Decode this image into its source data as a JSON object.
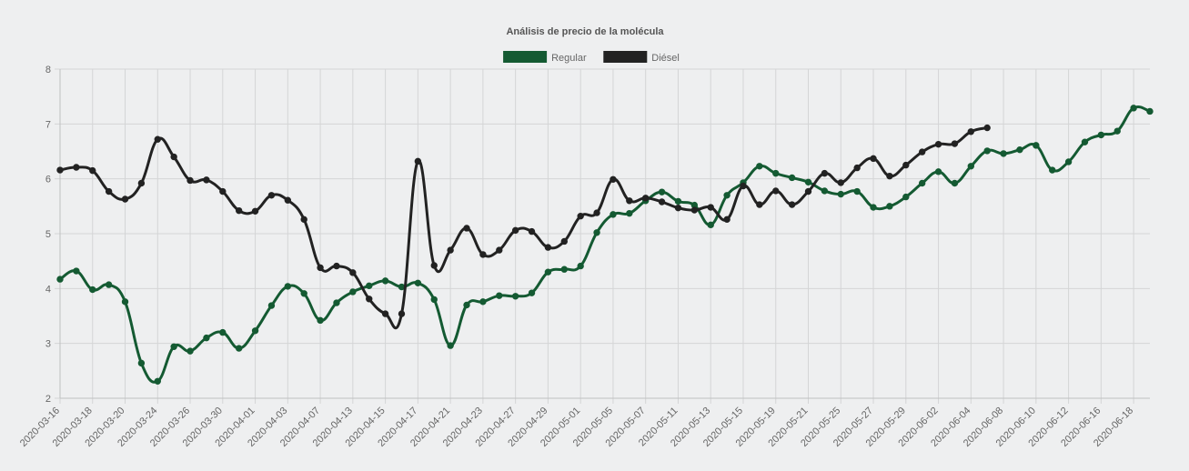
{
  "chart_data": {
    "type": "line",
    "title": "Análisis de precio de la molécula",
    "xlabel": "",
    "ylabel": "",
    "ylim": [
      2,
      8
    ],
    "yticks": [
      "2",
      "3",
      "4",
      "5",
      "6",
      "7",
      "8"
    ],
    "legend_position": "top-center",
    "grid": true,
    "x": [
      "2020-03-16",
      "2020-03-17",
      "2020-03-18",
      "2020-03-19",
      "2020-03-20",
      "2020-03-23",
      "2020-03-24",
      "2020-03-25",
      "2020-03-26",
      "2020-03-27",
      "2020-03-30",
      "2020-03-31",
      "2020-04-01",
      "2020-04-02",
      "2020-04-03",
      "2020-04-06",
      "2020-04-07",
      "2020-04-08",
      "2020-04-13",
      "2020-04-14",
      "2020-04-15",
      "2020-04-16",
      "2020-04-17",
      "2020-04-20",
      "2020-04-21",
      "2020-04-22",
      "2020-04-23",
      "2020-04-24",
      "2020-04-27",
      "2020-04-28",
      "2020-04-29",
      "2020-04-30",
      "2020-05-01",
      "2020-05-04",
      "2020-05-05",
      "2020-05-06",
      "2020-05-07",
      "2020-05-08",
      "2020-05-11",
      "2020-05-12",
      "2020-05-13",
      "2020-05-14",
      "2020-05-15",
      "2020-05-18",
      "2020-05-19",
      "2020-05-20",
      "2020-05-21",
      "2020-05-22",
      "2020-05-25",
      "2020-05-26",
      "2020-05-27",
      "2020-05-28",
      "2020-05-29",
      "2020-06-01",
      "2020-06-02",
      "2020-06-03",
      "2020-06-04",
      "2020-06-05",
      "2020-06-08",
      "2020-06-09",
      "2020-06-10",
      "2020-06-11",
      "2020-06-12",
      "2020-06-15",
      "2020-06-16",
      "2020-06-17",
      "2020-06-18",
      "2020-06-19"
    ],
    "x_tick_labels": [
      "2020-03-16",
      "2020-03-18",
      "2020-03-20",
      "2020-03-24",
      "2020-03-26",
      "2020-03-30",
      "2020-04-01",
      "2020-04-03",
      "2020-04-07",
      "2020-04-13",
      "2020-04-15",
      "2020-04-17",
      "2020-04-21",
      "2020-04-23",
      "2020-04-27",
      "2020-04-29",
      "2020-05-01",
      "2020-05-05",
      "2020-05-07",
      "2020-05-11",
      "2020-05-13",
      "2020-05-15",
      "2020-05-19",
      "2020-05-21",
      "2020-05-25",
      "2020-05-27",
      "2020-05-29",
      "2020-06-02",
      "2020-06-04",
      "2020-06-08",
      "2020-06-10",
      "2020-06-12",
      "2020-06-16",
      "2020-06-18"
    ],
    "series": [
      {
        "name": "Regular",
        "color": "#145a32",
        "values": [
          4.17,
          4.32,
          3.98,
          4.07,
          3.76,
          2.64,
          2.31,
          2.94,
          2.86,
          3.1,
          3.2,
          2.91,
          3.23,
          3.69,
          4.04,
          3.91,
          3.42,
          3.74,
          3.94,
          4.05,
          4.14,
          4.03,
          4.1,
          3.8,
          2.96,
          3.7,
          3.76,
          3.87,
          3.86,
          3.92,
          4.3,
          4.35,
          4.41,
          5.02,
          5.35,
          5.37,
          5.6,
          5.76,
          5.59,
          5.52,
          5.16,
          5.7,
          5.93,
          6.23,
          6.1,
          6.02,
          5.94,
          5.78,
          5.72,
          5.77,
          5.48,
          5.5,
          5.67,
          5.92,
          6.13,
          5.92,
          6.23,
          6.51,
          6.46,
          6.53,
          6.61,
          6.16,
          6.31,
          6.67,
          6.8,
          6.87,
          7.29,
          7.23
        ]
      },
      {
        "name": "Diésel",
        "color": "#222222",
        "values": [
          6.16,
          6.21,
          6.15,
          5.77,
          5.63,
          5.92,
          6.72,
          6.4,
          5.97,
          5.98,
          5.77,
          5.42,
          5.41,
          5.7,
          5.61,
          5.26,
          4.38,
          4.41,
          4.29,
          3.81,
          3.54,
          3.54,
          6.32,
          4.42,
          4.7,
          5.1,
          4.62,
          4.7,
          5.06,
          5.04,
          4.75,
          4.86,
          5.32,
          5.38,
          5.99,
          5.6,
          5.65,
          5.58,
          5.47,
          5.43,
          5.48,
          5.26,
          5.87,
          5.53,
          5.78,
          5.53,
          5.77,
          6.1,
          5.93,
          6.2,
          6.37,
          6.05,
          6.25,
          6.49,
          6.63,
          6.64,
          6.86,
          6.93,
          null,
          null,
          null,
          null,
          null,
          null,
          null,
          null,
          null,
          null
        ]
      }
    ]
  }
}
